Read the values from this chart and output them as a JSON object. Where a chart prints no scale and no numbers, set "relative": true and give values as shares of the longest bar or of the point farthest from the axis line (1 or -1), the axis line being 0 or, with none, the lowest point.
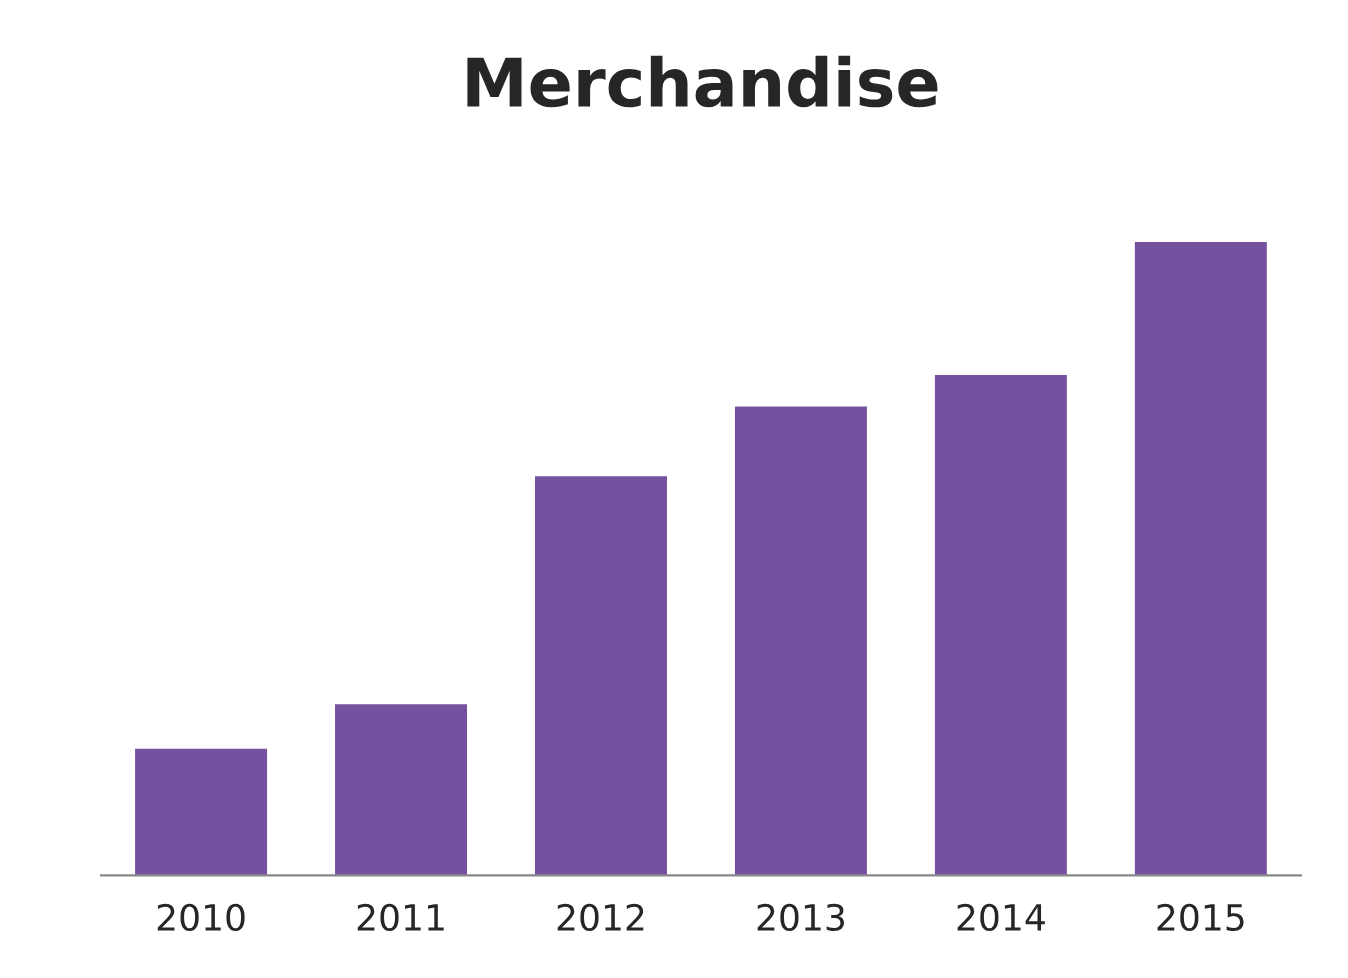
{
  "chart_data": {
    "type": "bar",
    "title": "Merchandise",
    "relative": true,
    "categories": [
      "2010",
      "2011",
      "2012",
      "2013",
      "2014",
      "2015"
    ],
    "values": [
      0.2,
      0.27,
      0.63,
      0.74,
      0.79,
      1
    ],
    "color": "#7552a0",
    "grid": false,
    "legend": false
  }
}
